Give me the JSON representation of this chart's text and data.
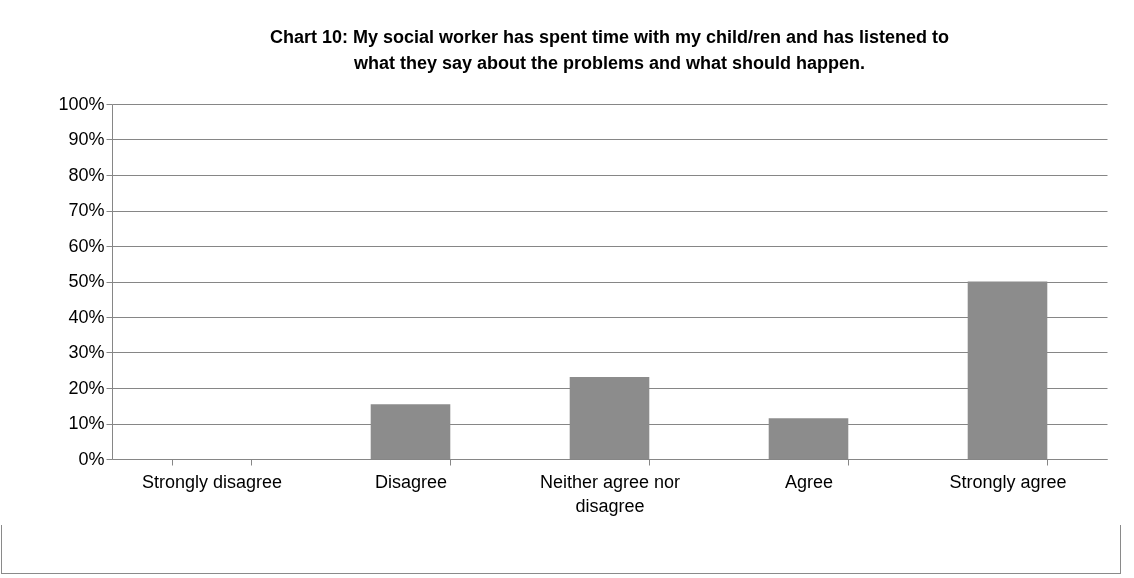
{
  "chart_data": {
    "type": "bar",
    "title": "Chart 10: My social worker has spent time with my child/ren and has listened to what they say about the problems and what should happen.",
    "categories": [
      "Strongly disagree",
      "Disagree",
      "Neither agree nor disagree",
      "Agree",
      "Strongly agree"
    ],
    "values": [
      0,
      15.4,
      23.1,
      11.5,
      50
    ],
    "color": "#8c8c8c",
    "ylim": [
      0,
      100
    ],
    "yticks": [
      {
        "value": 0,
        "label": "0%"
      },
      {
        "value": 10,
        "label": "10%"
      },
      {
        "value": 20,
        "label": "20%"
      },
      {
        "value": 30,
        "label": "30%"
      },
      {
        "value": 40,
        "label": "40%"
      },
      {
        "value": 50,
        "label": "50%"
      },
      {
        "value": 60,
        "label": "60%"
      },
      {
        "value": 70,
        "label": "70%"
      },
      {
        "value": 80,
        "label": "80%"
      },
      {
        "value": 90,
        "label": "90%"
      },
      {
        "value": 100,
        "label": "100%"
      }
    ],
    "grid": "y"
  }
}
